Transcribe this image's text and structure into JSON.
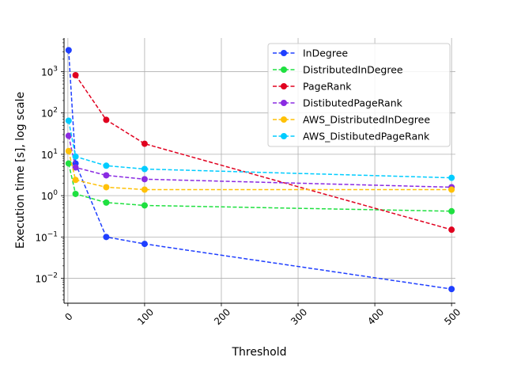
{
  "chart_data": {
    "type": "line",
    "xlabel": "Threshold",
    "ylabel": "Execution time [s], log scale",
    "xlim": [
      -5,
      505
    ],
    "ylim": [
      0.0025,
      6500
    ],
    "yscale": "log",
    "grid": true,
    "legend_position": "top-right",
    "x_ticks": [
      0,
      100,
      200,
      300,
      400,
      500
    ],
    "x_tick_labels": [
      "0",
      "100",
      "200",
      "300",
      "400",
      "500"
    ],
    "y_ticks": [
      0.01,
      0.1,
      1,
      10,
      100,
      1000
    ],
    "y_tick_labels": [
      {
        "base": "10",
        "exp": "−2"
      },
      {
        "base": "10",
        "exp": "−1"
      },
      {
        "base": "10",
        "exp": "0"
      },
      {
        "base": "10",
        "exp": "1"
      },
      {
        "base": "10",
        "exp": "2"
      },
      {
        "base": "10",
        "exp": "3"
      }
    ],
    "series": [
      {
        "name": "InDegree",
        "color": "#1f3fff",
        "x": [
          1,
          10,
          50,
          100,
          500
        ],
        "y": [
          3300,
          6.0,
          0.1,
          0.068,
          0.0055
        ]
      },
      {
        "name": "DistributedInDegree",
        "color": "#1fe040",
        "x": [
          1,
          10,
          50,
          100,
          500
        ],
        "y": [
          6.0,
          1.1,
          0.68,
          0.58,
          0.42
        ]
      },
      {
        "name": "PageRank",
        "color": "#e0001f",
        "x": [
          10,
          50,
          100,
          500
        ],
        "y": [
          820,
          68,
          18,
          0.15
        ]
      },
      {
        "name": "DistibutedPageRank",
        "color": "#8a2be2",
        "x": [
          1,
          10,
          50,
          100,
          500
        ],
        "y": [
          28,
          4.8,
          3.1,
          2.5,
          1.6
        ]
      },
      {
        "name": "AWS_DistributedInDegree",
        "color": "#ffc107",
        "x": [
          1,
          10,
          50,
          100,
          500
        ],
        "y": [
          12,
          2.4,
          1.6,
          1.4,
          1.4
        ]
      },
      {
        "name": "AWS_DistibutedPageRank",
        "color": "#00ccff",
        "x": [
          1,
          10,
          50,
          100,
          500
        ],
        "y": [
          65,
          8.8,
          5.3,
          4.4,
          2.7
        ]
      }
    ]
  }
}
